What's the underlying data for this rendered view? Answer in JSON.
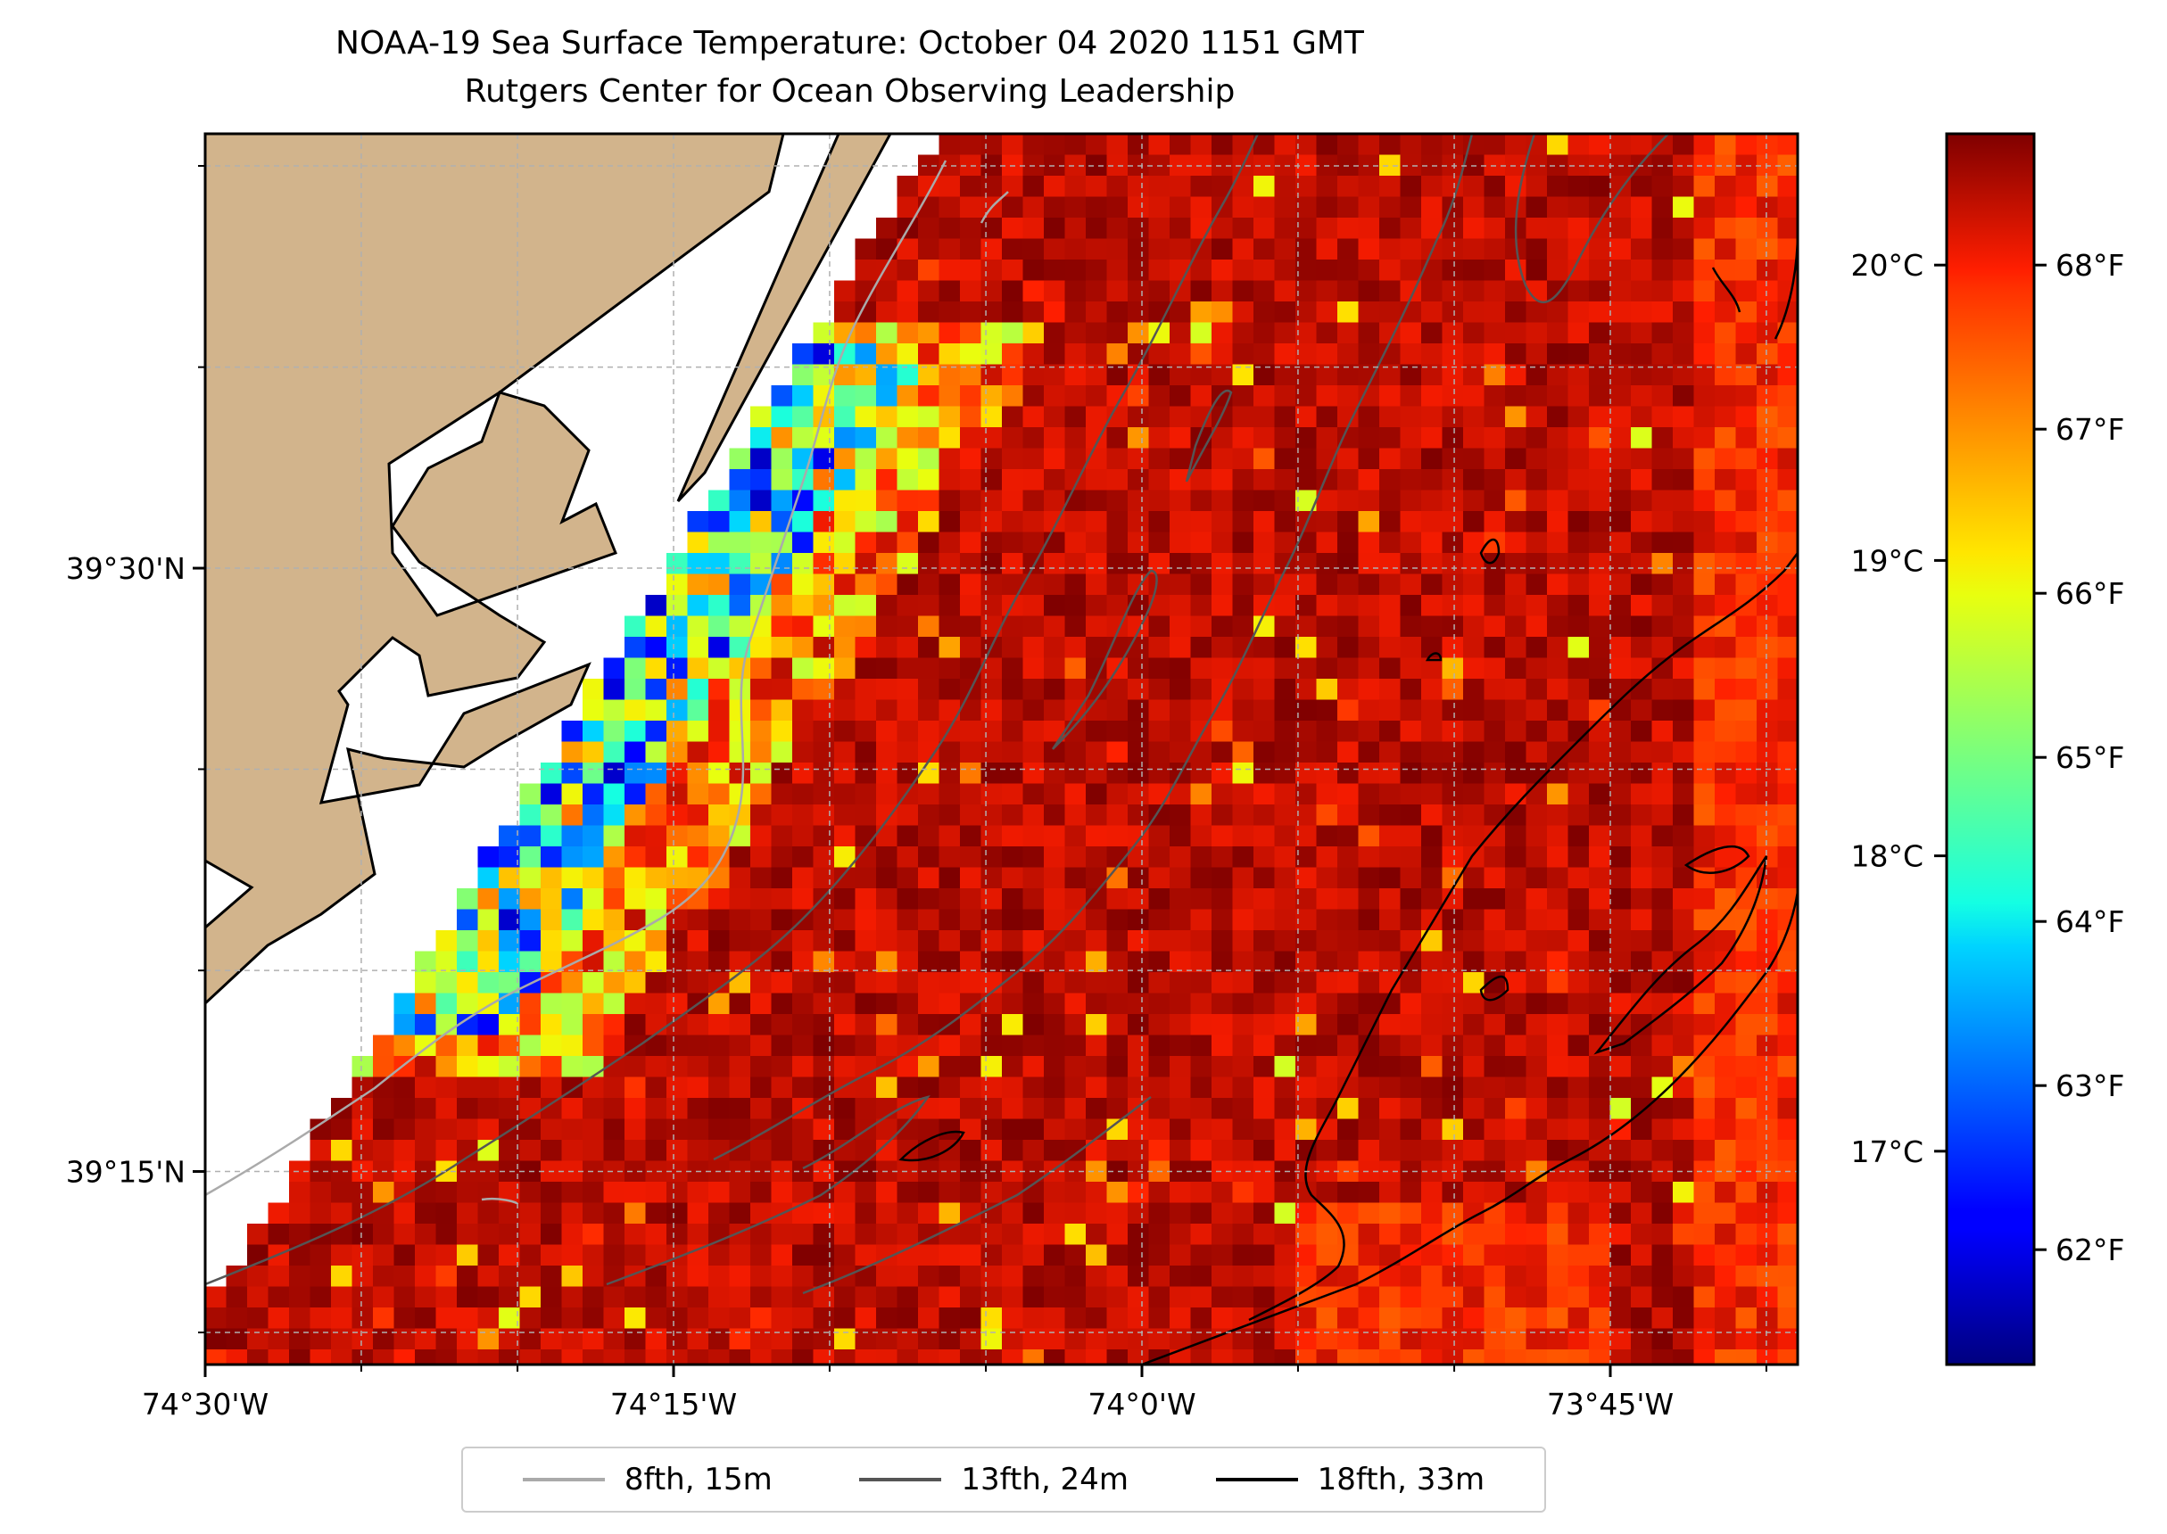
{
  "title": {
    "line1": "NOAA-19 Sea Surface Temperature: October 04 2020 1151 GMT",
    "line2": "Rutgers Center for Ocean Observing Leadership"
  },
  "axes": {
    "x_ticks": [
      "74°30'W",
      "74°15'W",
      "74°0'W",
      "73°45'W"
    ],
    "x_tick_values": [
      -74.5,
      -74.25,
      -74.0,
      -73.75
    ],
    "y_ticks": [
      "39°30'N",
      "39°15'N"
    ],
    "y_tick_values": [
      39.5,
      39.25
    ],
    "lon_range": [
      -74.5,
      -73.65
    ],
    "lat_range": [
      39.17,
      39.68
    ],
    "grid": true
  },
  "colorbar": {
    "colormap": "jet",
    "range_f": [
      61.3,
      68.8
    ],
    "f_ticks": [
      "62°F",
      "63°F",
      "64°F",
      "65°F",
      "66°F",
      "67°F",
      "68°F"
    ],
    "f_tick_values": [
      62,
      63,
      64,
      65,
      66,
      67,
      68
    ],
    "c_ticks": [
      "17°C",
      "18°C",
      "19°C",
      "20°C"
    ],
    "c_tick_values": [
      17,
      18,
      19,
      20
    ]
  },
  "legend": {
    "items": [
      {
        "label": "8fth, 15m",
        "color": "#aaaaaa"
      },
      {
        "label": "13fth, 24m",
        "color": "#555555"
      },
      {
        "label": "18fth, 33m",
        "color": "#000000"
      }
    ]
  },
  "colors": {
    "land": "#d2b48c",
    "coastline": "#000000",
    "grid": "#b0b0b0"
  }
}
